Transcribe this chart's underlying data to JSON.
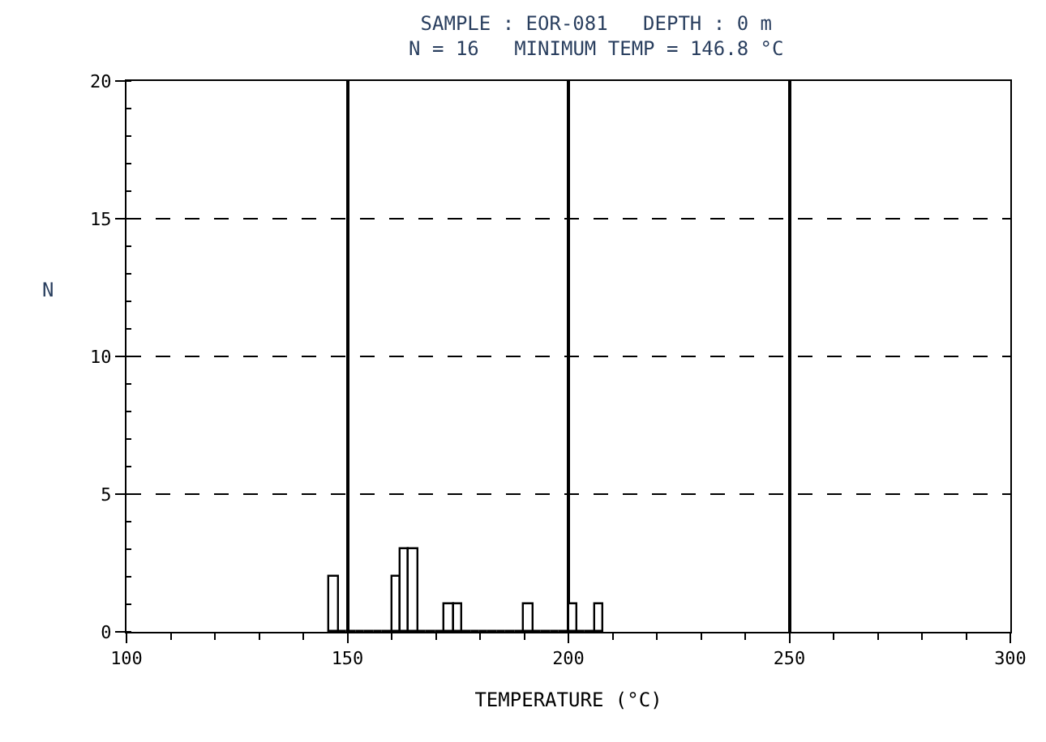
{
  "chart_data": {
    "type": "histogram",
    "title": "SAMPLE : EOR-081   DEPTH : 0 m",
    "subtitle": "N = 16   MINIMUM TEMP = 146.8 °C",
    "xlabel": "TEMPERATURE (°C)",
    "ylabel": "N",
    "bins": [
      146,
      148,
      150,
      152,
      154,
      156,
      158,
      160,
      162,
      164,
      166,
      168,
      170,
      172,
      174,
      176,
      178,
      180,
      182,
      184,
      186,
      188,
      190,
      192,
      194,
      196,
      198,
      200,
      202,
      204,
      206,
      208
    ],
    "values": [
      2,
      0,
      0,
      0,
      0,
      0,
      0,
      2,
      3,
      3,
      0,
      0,
      0,
      1,
      1,
      0,
      0,
      0,
      0,
      0,
      0,
      0,
      1,
      0,
      0,
      0,
      0,
      1,
      0,
      0,
      1
    ],
    "color": "#000000",
    "xlim": [
      100,
      300
    ],
    "xticks": [
      100,
      150,
      200,
      250,
      300
    ],
    "ylim": [
      0,
      20
    ],
    "yticks": [
      0,
      5,
      10,
      15,
      20
    ],
    "grid": true
  }
}
